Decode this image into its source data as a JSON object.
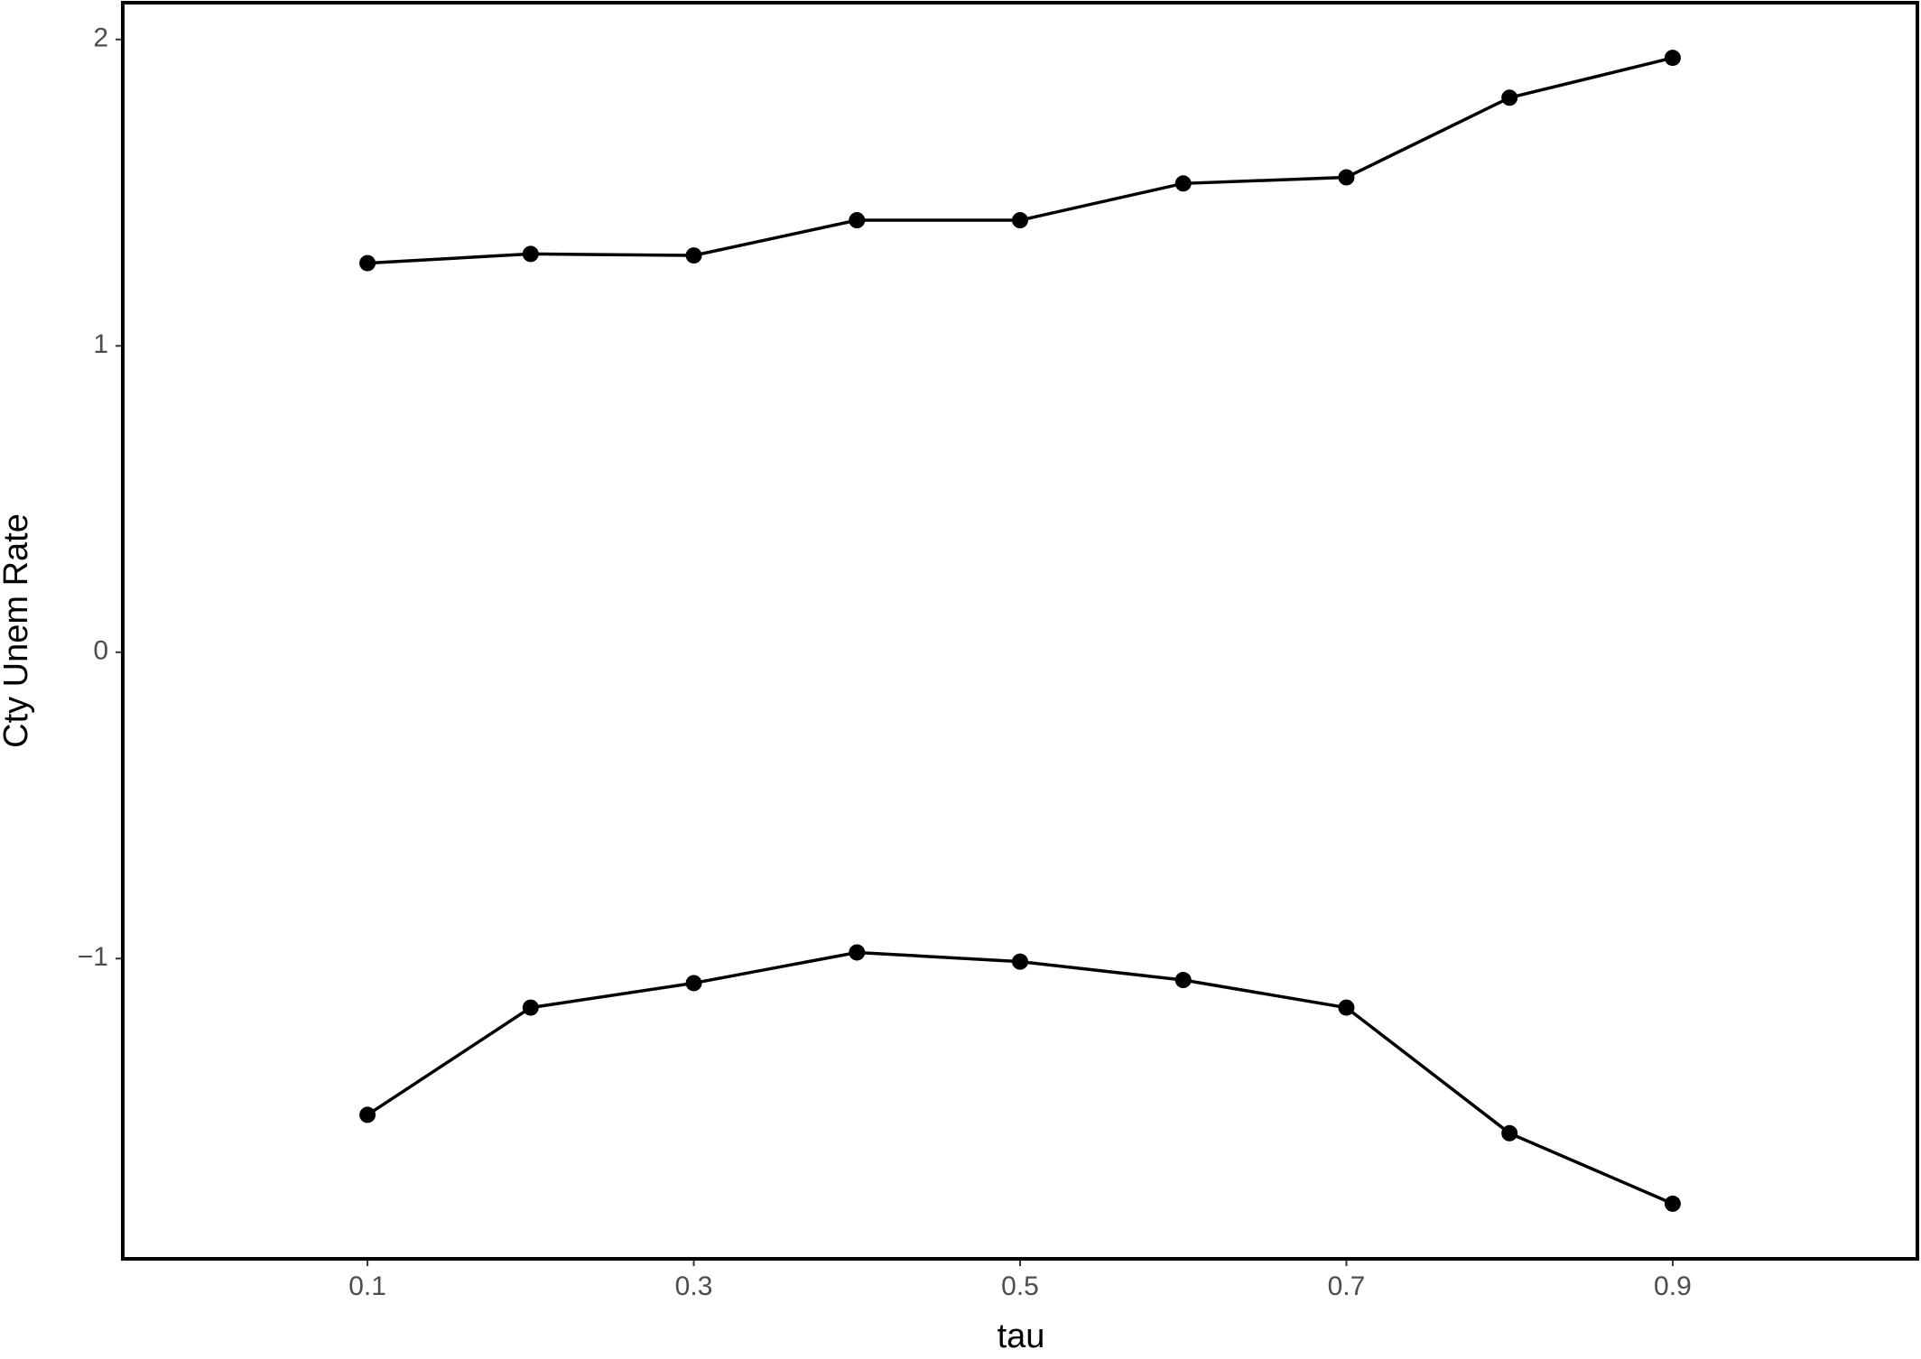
{
  "chart_data": {
    "type": "line",
    "x_label": "tau",
    "y_label": "Cty Unem Rate",
    "x": [
      0.1,
      0.2,
      0.3,
      0.4,
      0.5,
      0.6,
      0.7,
      0.8,
      0.9
    ],
    "series": [
      {
        "color": "#000000",
        "values": [
          1.27,
          1.3,
          1.295,
          1.41,
          1.41,
          1.53,
          1.55,
          1.81,
          1.94
        ]
      },
      {
        "color": "#000000",
        "values": [
          -1.51,
          -1.16,
          -1.08,
          -0.98,
          -1.01,
          -1.07,
          -1.16,
          -1.57,
          -1.8
        ]
      }
    ],
    "xlim": [
      -0.05,
      1.05
    ],
    "xticks": [
      0.1,
      0.3,
      0.5,
      0.7,
      0.9
    ],
    "ylim": [
      -1.98,
      2.12
    ],
    "yticks": [
      {
        "value": -1,
        "label": "−1"
      },
      0,
      1,
      2
    ],
    "grid": false,
    "markers": true
  }
}
